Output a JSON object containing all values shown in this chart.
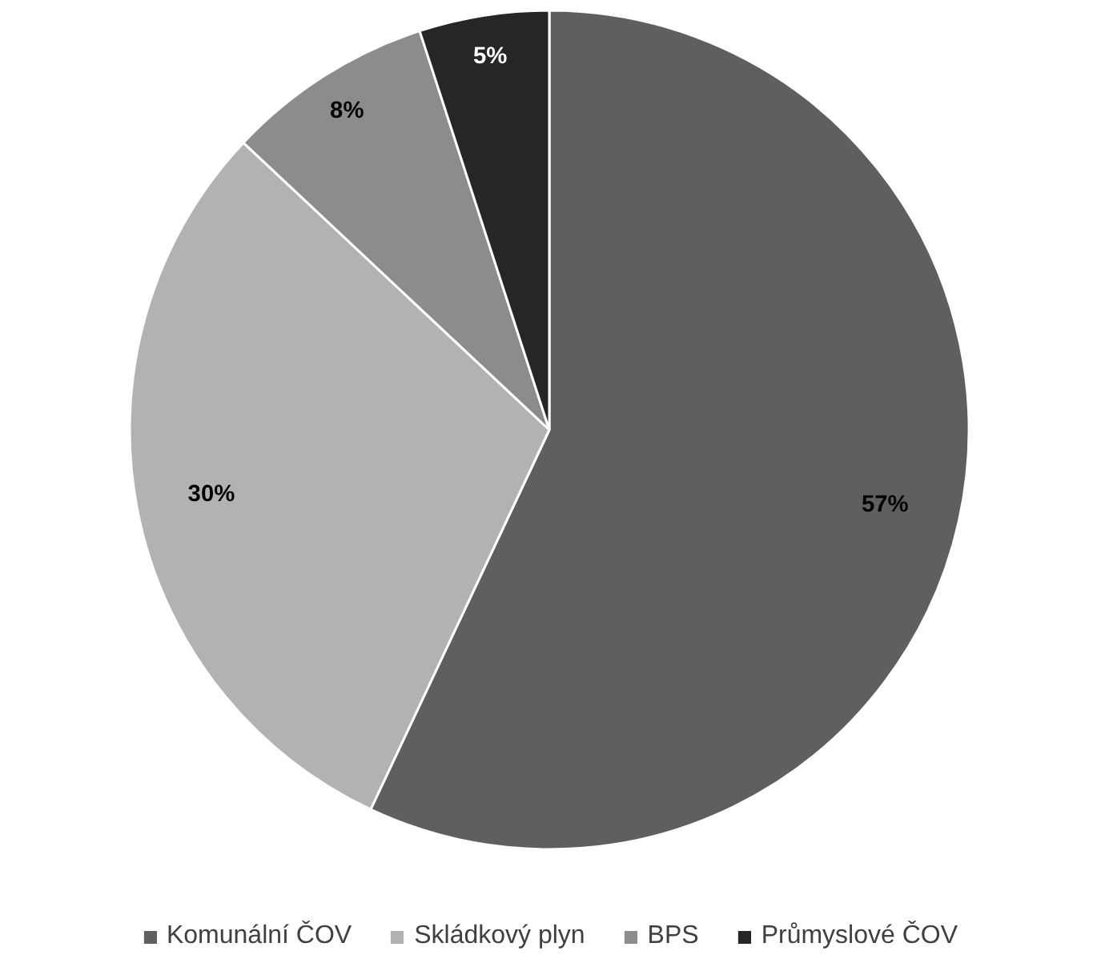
{
  "chart_data": {
    "type": "pie",
    "categories": [
      "Komunální ČOV",
      "Skládkový plyn",
      "BPS",
      "Průmyslové ČOV"
    ],
    "values": [
      57,
      30,
      8,
      5
    ],
    "value_labels": [
      "57%",
      "30%",
      "8%",
      "5%"
    ],
    "colors": [
      "#5f5f5f",
      "#b2b2b2",
      "#8c8c8c",
      "#262626"
    ],
    "legend": "bottom"
  }
}
